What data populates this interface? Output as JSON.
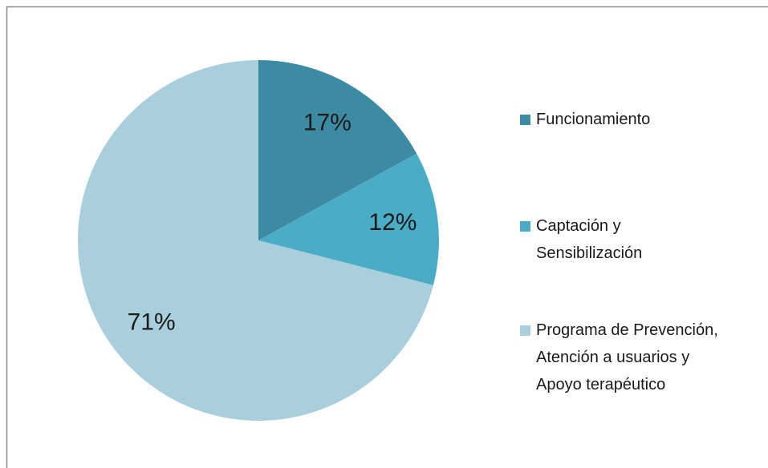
{
  "chart_data": {
    "type": "pie",
    "categories": [
      "Funcionamiento",
      "Captación y Sensibilización",
      "Programa de Prevención, Atención a usuarios y Apoyo terapéutico"
    ],
    "values": [
      17,
      12,
      71
    ],
    "value_labels": [
      "17%",
      "12%",
      "71%"
    ],
    "colors": [
      "#3d8ba3",
      "#4bacc6",
      "#a9cfdc"
    ],
    "legend": "right"
  }
}
